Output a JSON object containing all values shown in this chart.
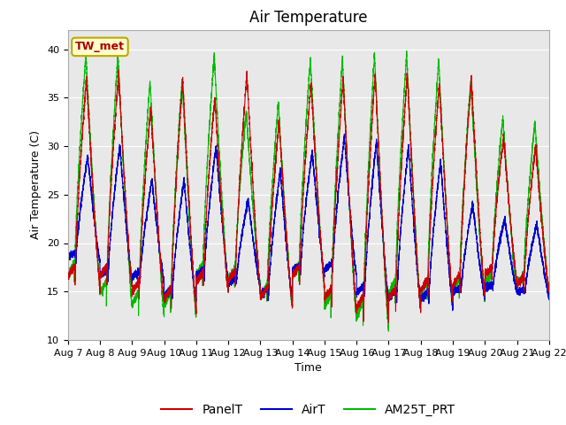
{
  "title": "Air Temperature",
  "xlabel": "Time",
  "ylabel": "Air Temperature (C)",
  "ylim": [
    10,
    42
  ],
  "yticks": [
    10,
    15,
    20,
    25,
    30,
    35,
    40
  ],
  "xlim_start": 0,
  "xlim_end": 15,
  "x_tick_labels": [
    "Aug 7",
    "Aug 8",
    "Aug 9",
    "Aug 10",
    "Aug 11",
    "Aug 12",
    "Aug 13",
    "Aug 14",
    "Aug 15",
    "Aug 16",
    "Aug 17",
    "Aug 18",
    "Aug 19",
    "Aug 20",
    "Aug 21",
    "Aug 22"
  ],
  "annotation_text": "TW_met",
  "annotation_bg": "#ffffcc",
  "annotation_border": "#bbaa00",
  "annotation_text_color": "#aa0000",
  "series": [
    {
      "label": "PanelT",
      "color": "#cc0000"
    },
    {
      "label": "AirT",
      "color": "#0000cc"
    },
    {
      "label": "AM25T_PRT",
      "color": "#00bb00"
    }
  ],
  "plot_bg": "#e8e8e8",
  "grid_color": "#ffffff",
  "title_fontsize": 12,
  "axis_fontsize": 9,
  "tick_fontsize": 8,
  "legend_fontsize": 10,
  "daily_maxes_panel": [
    37.0,
    37.5,
    34.0,
    37.0,
    35.0,
    37.5,
    32.5,
    36.5,
    37.0,
    37.5,
    37.5,
    36.5,
    37.0,
    31.0,
    30.0
  ],
  "daily_maxes_air": [
    29.0,
    30.0,
    26.5,
    26.5,
    30.0,
    24.5,
    27.5,
    29.5,
    31.0,
    30.5,
    30.0,
    28.5,
    24.0,
    22.5,
    22.0
  ],
  "daily_maxes_am25": [
    39.5,
    39.5,
    36.8,
    36.8,
    39.4,
    33.5,
    34.5,
    39.0,
    39.0,
    39.5,
    39.5,
    39.0,
    36.8,
    33.0,
    32.5
  ],
  "daily_mins_panel": [
    15.5,
    15.5,
    14.0,
    13.0,
    15.0,
    15.0,
    13.5,
    15.5,
    13.0,
    12.0,
    13.0,
    14.0,
    14.5,
    16.0,
    15.0
  ],
  "daily_mins_air": [
    18.0,
    16.0,
    16.0,
    14.0,
    16.0,
    15.5,
    14.0,
    16.5,
    16.5,
    14.0,
    13.5,
    13.5,
    14.5,
    15.0,
    14.5
  ],
  "daily_mins_am25": [
    15.5,
    13.5,
    12.5,
    12.5,
    15.5,
    15.5,
    13.5,
    15.5,
    12.0,
    11.0,
    13.5,
    13.5,
    14.0,
    15.0,
    15.0
  ]
}
